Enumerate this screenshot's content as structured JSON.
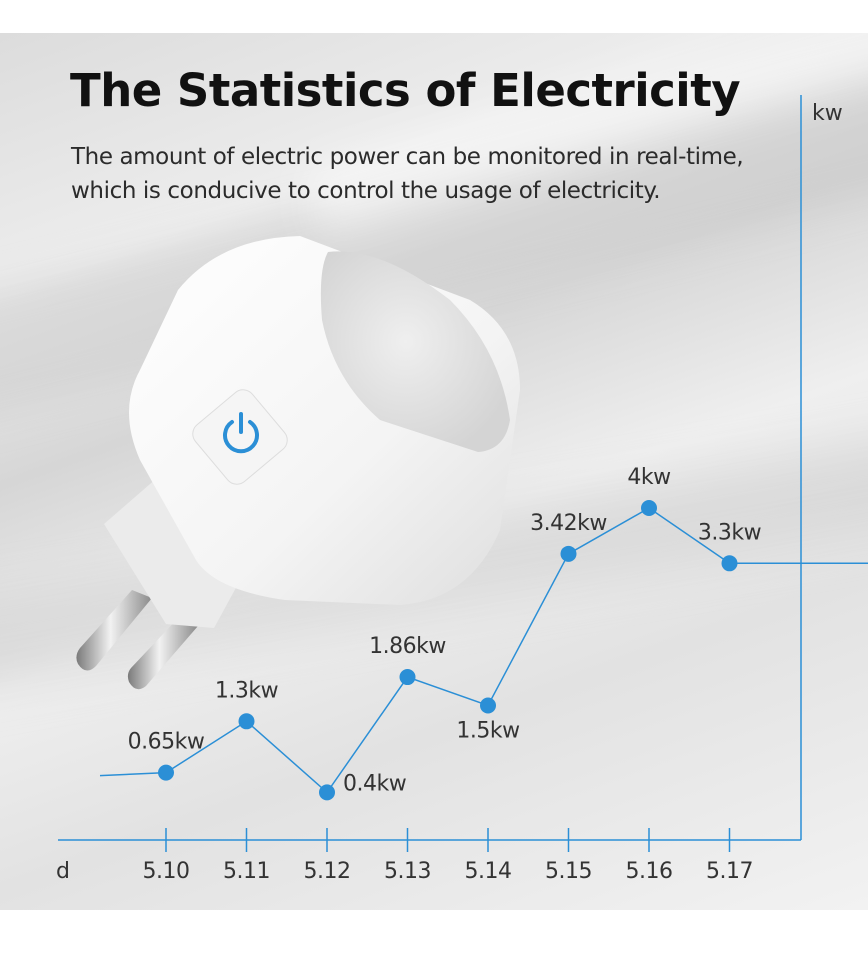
{
  "headline": {
    "title": "The Statistics of Electricity",
    "subtitle": "The amount of electric power can be monitored in real-time, which is conducive to control the usage of electricity."
  },
  "product": {
    "name": "white smart plug",
    "button_icon": "power-icon",
    "accent_color": "#2b8fd6"
  },
  "chart_data": {
    "type": "line",
    "categories": [
      "5.10",
      "5.11",
      "5.12",
      "5.13",
      "5.14",
      "5.15",
      "5.16",
      "5.17"
    ],
    "values": [
      0.65,
      1.3,
      0.4,
      1.86,
      1.5,
      3.42,
      4,
      3.3
    ],
    "data_labels": [
      "0.65kw",
      "1.3kw",
      "0.4kw",
      "1.86kw",
      "1.5kw",
      "3.42kw",
      "4kw",
      "3.3kw"
    ],
    "xlabel": "d",
    "ylabel": "kw",
    "ylim": [
      0,
      4.8
    ],
    "grid": false,
    "legend": "none",
    "line_color": "#2b8fd6"
  }
}
